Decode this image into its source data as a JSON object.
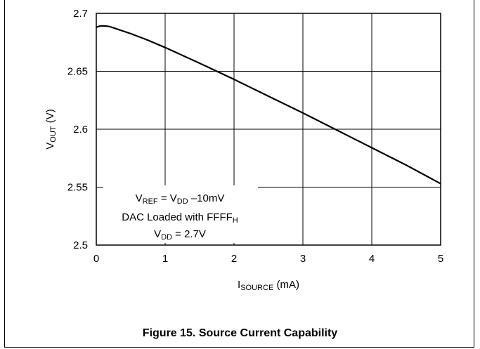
{
  "figure_caption": "Figure 15. Source Current Capability",
  "chart_data": {
    "type": "line",
    "xlabel": {
      "main": "I",
      "sub": "SOURCE",
      "unit": " (mA)"
    },
    "ylabel": {
      "main": "V",
      "sub": "OUT",
      "unit": " (V)"
    },
    "xlim": [
      0,
      5
    ],
    "ylim": [
      2.5,
      2.7
    ],
    "x_ticks": [
      "0",
      "1",
      "2",
      "3",
      "4",
      "5"
    ],
    "y_ticks": [
      "2.5",
      "2.55",
      "2.6",
      "2.65",
      "2.7"
    ],
    "grid": true,
    "series": [
      {
        "x": [
          0,
          0.05,
          0.1,
          0.15,
          0.2,
          0.3,
          0.5,
          0.75,
          1.0,
          1.5,
          2.0,
          2.5,
          3.0,
          3.5,
          4.0,
          4.5,
          5.0
        ],
        "y": [
          2.688,
          2.689,
          2.6892,
          2.689,
          2.6885,
          2.6865,
          2.6825,
          2.6768,
          2.6705,
          2.657,
          2.643,
          2.6285,
          2.614,
          2.599,
          2.584,
          2.569,
          2.553
        ]
      }
    ],
    "annotations": {
      "line1": {
        "a": "V",
        "a_sub": "REF",
        "b": " = V",
        "b_sub": "DD",
        "c": " –10mV"
      },
      "line2": {
        "a": "DAC Loaded with FFFF",
        "a_sub": "H"
      },
      "line3": {
        "a": "V",
        "a_sub": "DD",
        "b": " = 2.7V"
      }
    }
  }
}
